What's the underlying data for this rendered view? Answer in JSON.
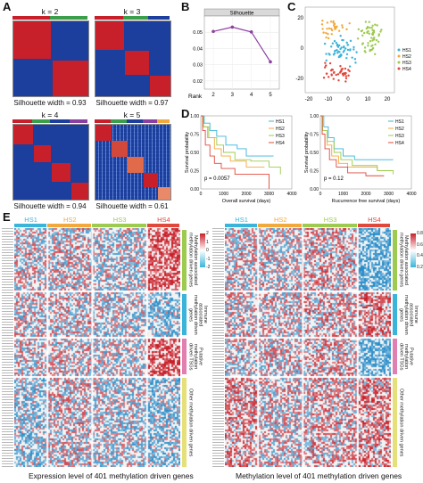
{
  "panels": {
    "A": "A",
    "B": "B",
    "C": "C",
    "D": "D",
    "E": "E"
  },
  "colors": {
    "red": "#c8202a",
    "blue": "#1c3e9c",
    "hs1": "#3bb4d9",
    "hs2": "#f2a93b",
    "hs3": "#9ccb4f",
    "hs4": "#e0483c",
    "green": "#3a9e4a",
    "purple": "#8b3fa0"
  },
  "panel_a": {
    "blocks": [
      {
        "title": "k = 2",
        "silhouette": "Silhouette width = 0.93"
      },
      {
        "title": "k = 3",
        "silhouette": "Silhouette width = 0.97"
      },
      {
        "title": "k = 4",
        "silhouette": "Silhouette width = 0.94"
      },
      {
        "title": "k = 5",
        "silhouette": "Silhouette width = 0.61"
      }
    ]
  },
  "chart_data": [
    {
      "type": "line",
      "title": "Silhouette",
      "xlabel": "Rank",
      "x": [
        2,
        3,
        4,
        5
      ],
      "values": [
        0.0505,
        0.0532,
        0.0502,
        0.0318
      ],
      "yticks": [
        "0.02",
        "0.03",
        "0.04",
        "0.05"
      ],
      "xticks": [
        "2",
        "3",
        "4",
        "5"
      ],
      "ylim": [
        0.015,
        0.06
      ]
    },
    {
      "type": "scatter",
      "xticks": [
        "-20",
        "-10",
        "0",
        "10",
        "20"
      ],
      "yticks": [
        "-20",
        "0",
        "20"
      ],
      "legend": [
        "HS1",
        "HS2",
        "HS3",
        "HS4"
      ]
    },
    {
      "type": "line",
      "ylabel": "Survival probability",
      "xlabel": "Overall survival (days)",
      "annotation": "p = 0.0057",
      "xticks": [
        "0",
        "1000",
        "2000",
        "3000",
        "4000"
      ],
      "yticks": [
        "0.00",
        "0.25",
        "0.50",
        "0.75",
        "1.00"
      ],
      "legend": [
        "HS1",
        "HS2",
        "HS3",
        "HS4"
      ]
    },
    {
      "type": "line",
      "ylabel": "Survival probability",
      "xlabel": "Rucurrence free survival (days)",
      "annotation": "p = 0.12",
      "xticks": [
        "0",
        "1000",
        "2000",
        "3000",
        "4000"
      ],
      "yticks": [
        "0.00",
        "0.25",
        "0.50",
        "0.75",
        "1.00"
      ],
      "legend": [
        "HS1",
        "HS2",
        "HS3",
        "HS4"
      ]
    }
  ],
  "panel_e": {
    "groups": [
      "HS1",
      "HS2",
      "HS3",
      "HS4"
    ],
    "left_caption": "Expression level of 401 methylation driven genes",
    "right_caption": "Methylation level of 401 methylation driven genes",
    "row_labels": [
      "Methylation associated\nmethylation driven genes",
      "Immune associated\nmethylation driven genes",
      "Putative methylation\ndriven TSGs",
      "Other methylation driven genes"
    ],
    "scale_left": [
      "2",
      "1",
      "0",
      "-1",
      "-2"
    ],
    "scale_right": [
      "0.8",
      "0.6",
      "0.4",
      "0.2"
    ]
  }
}
